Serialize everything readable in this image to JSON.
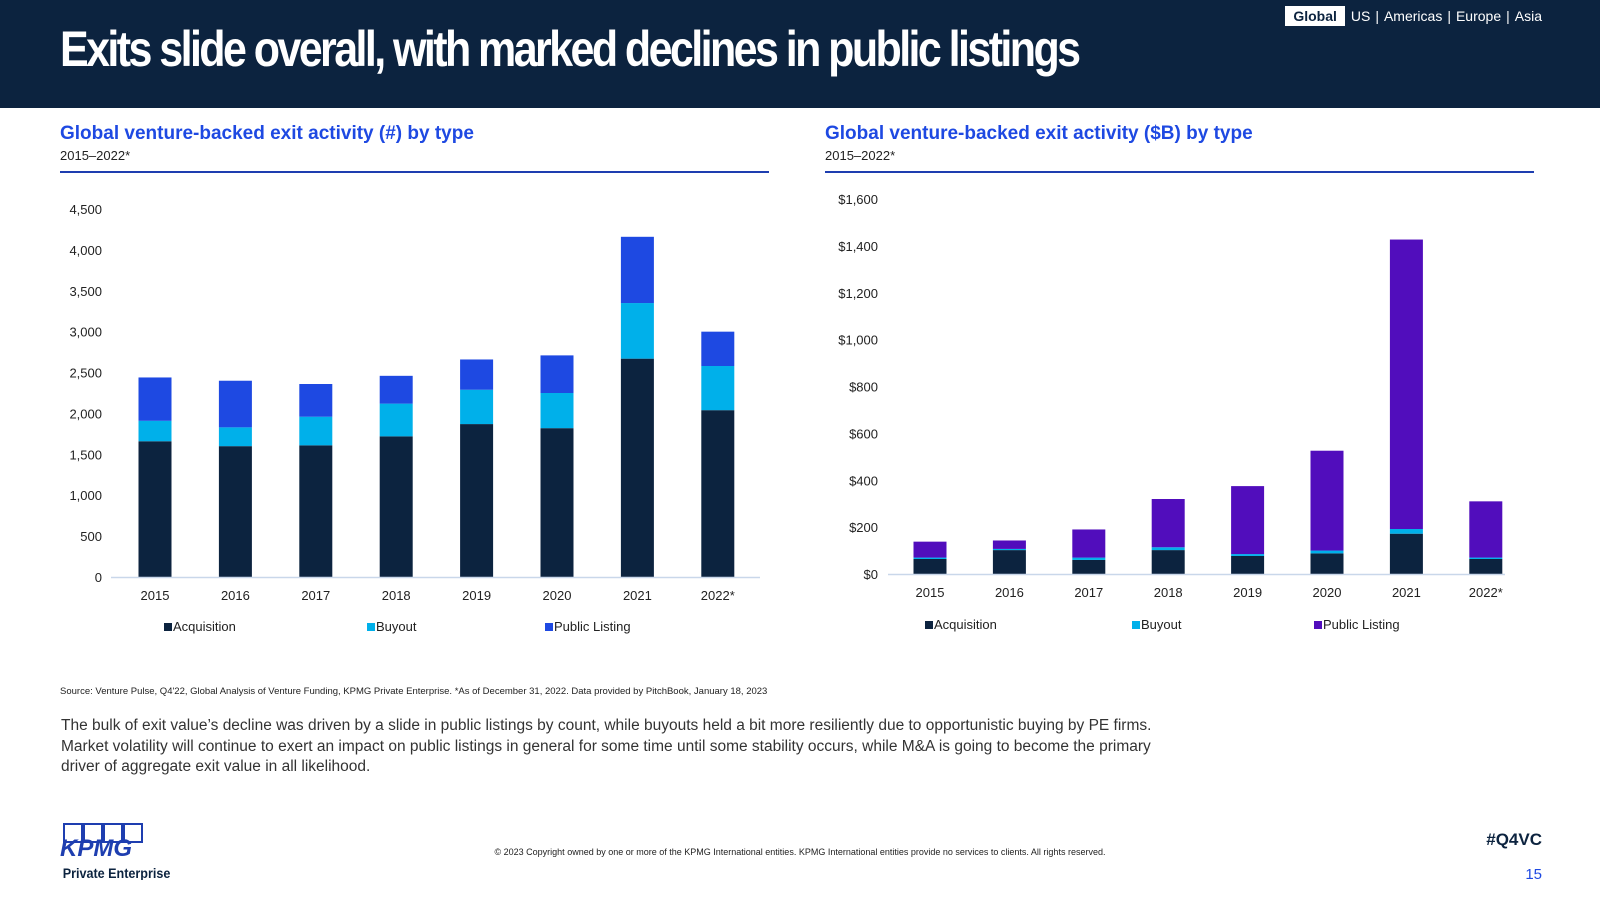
{
  "header": {
    "title": "Exits slide overall, with marked declines in public listings",
    "nav": {
      "active": "Global",
      "items": [
        "US",
        "Americas",
        "Europe",
        "Asia"
      ],
      "separator": "|"
    }
  },
  "left_panel": {
    "title": "Global venture-backed exit activity (#) by type",
    "subtitle": "2015–2022*"
  },
  "right_panel": {
    "title": "Global venture-backed exit activity ($B) by type",
    "subtitle": "2015–2022*"
  },
  "chart_data": [
    {
      "type": "bar",
      "stacked": true,
      "categories": [
        "2015",
        "2016",
        "2017",
        "2018",
        "2019",
        "2020",
        "2021",
        "2022*"
      ],
      "series": [
        {
          "name": "Acquisition",
          "color": "#0c233f",
          "values": [
            1660,
            1600,
            1610,
            1720,
            1870,
            1820,
            2670,
            2040
          ]
        },
        {
          "name": "Buyout",
          "color": "#00b0ea",
          "values": [
            250,
            230,
            350,
            400,
            420,
            430,
            680,
            540
          ]
        },
        {
          "name": "Public Listing",
          "color": "#1e49e2",
          "values": [
            530,
            570,
            400,
            340,
            370,
            460,
            810,
            420
          ]
        }
      ],
      "ylim": [
        0,
        4500
      ],
      "yticks": [
        "0",
        "500",
        "1,000",
        "1,500",
        "2,000",
        "2,500",
        "3,000",
        "3,500",
        "4,000",
        "4,500"
      ],
      "legend": "bottom"
    },
    {
      "type": "bar",
      "stacked": true,
      "categories": [
        "2015",
        "2016",
        "2017",
        "2018",
        "2019",
        "2020",
        "2021",
        "2022*"
      ],
      "series": [
        {
          "name": "Acquisition",
          "color": "#0c233f",
          "values": [
            64,
            102,
            60,
            102,
            77,
            88,
            172,
            64
          ]
        },
        {
          "name": "Buyout",
          "color": "#00b0ea",
          "values": [
            6,
            5,
            10,
            12,
            8,
            12,
            20,
            6
          ]
        },
        {
          "name": "Public Listing",
          "color": "#510dbc",
          "values": [
            68,
            36,
            120,
            206,
            290,
            426,
            1235,
            240
          ]
        }
      ],
      "ylim": [
        0,
        1600
      ],
      "yticks": [
        "$0",
        "$200",
        "$400",
        "$600",
        "$800",
        "$1,000",
        "$1,200",
        "$1,400",
        "$1,600"
      ],
      "legend": "bottom"
    }
  ],
  "source": "Source: Venture Pulse, Q4'22, Global Analysis of Venture Funding, KPMG Private Enterprise. *As of December 31, 2022. Data provided by PitchBook, January 18, 2023",
  "body": "The bulk of exit value’s decline was driven by a slide in public listings by count, while buyouts held a bit more resiliently due to opportunistic buying by PE firms. Market volatility will continue to exert an impact on public listings in general for some time until some stability occurs, while M&A is going to become the primary driver of aggregate exit value in all likelihood.",
  "footer": {
    "logo_text": "KPMG",
    "logo_sub": "Private Enterprise",
    "copyright": "© 2023 Copyright owned by one or more of the KPMG International entities. KPMG International entities provide no services to clients. All rights reserved.",
    "hashtag": "#Q4VC",
    "page": "15"
  }
}
